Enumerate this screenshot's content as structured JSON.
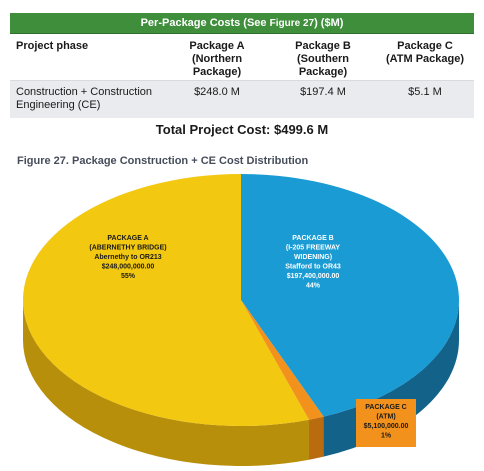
{
  "table": {
    "title_main": "Per-Package Costs (See ",
    "title_ref": "Figure 27",
    "title_tail": ") ($M)",
    "headers": [
      "Project phase",
      "Package A\n(Northern\nPackage)",
      "Package B\n(Southern\nPackage)",
      "Package C\n(ATM Package)"
    ],
    "row": {
      "phase": "Construction + Construction Engineering (CE)",
      "values": [
        "$248.0 M",
        "$197.4 M",
        "$5.1 M"
      ]
    },
    "total": "Total Project Cost: $499.6 M"
  },
  "figure": {
    "caption": "Figure 27. Package Construction + CE Cost Distribution"
  },
  "chart_data": {
    "type": "pie",
    "title": "",
    "slices": [
      {
        "label": [
          "PACKAGE A",
          "(ABERNETHY BRIDGE)",
          "Abernethy to OR213",
          "$248,000,000.00",
          "55%"
        ],
        "value": 248000000,
        "percent": 55,
        "color": "#f2c811",
        "side_color": "#b88f0b"
      },
      {
        "label": [
          "PACKAGE B",
          "(I-205 FREEWAY",
          "WIDENING)",
          "Stafford to OR43",
          "$197,400,000.00",
          "44%"
        ],
        "value": 197400000,
        "percent": 44,
        "color": "#1a9bd3",
        "side_color": "#13628a"
      },
      {
        "label": [
          "PACKAGE C",
          "(ATM)",
          "$5,100,000.00",
          "1%"
        ],
        "value": 5100000,
        "percent": 1,
        "color": "#f2911b",
        "side_color": "#b96b10"
      }
    ]
  }
}
